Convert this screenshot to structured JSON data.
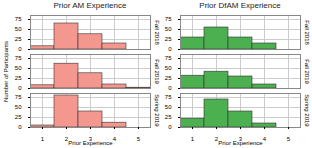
{
  "chart_data": [
    {
      "type": "histogram",
      "title": "Prior AM Experience",
      "color": "#f4978e",
      "xlabel": "Prior Experience",
      "ylabel": "Number of Participants",
      "bins": [
        0.5,
        1.5,
        2.5,
        3.5,
        4.5,
        5.5
      ],
      "xlim": [
        0.5,
        5.5
      ],
      "xticks": [
        1,
        2,
        3,
        4,
        5
      ],
      "ylim": [
        0,
        85
      ],
      "yticks": [
        0,
        25,
        50,
        75
      ],
      "grid": true,
      "series": [
        {
          "name": "Fall 2018",
          "values": [
            8,
            65,
            38,
            15,
            0
          ]
        },
        {
          "name": "Fall 2019",
          "values": [
            8,
            62,
            38,
            10,
            2
          ]
        },
        {
          "name": "Spring 2019",
          "values": [
            5,
            80,
            40,
            12,
            0
          ]
        }
      ]
    },
    {
      "type": "histogram",
      "title": "Prior DfAM Experience",
      "color": "#4caf50",
      "xlabel": "Prior Experience",
      "bins": [
        0.5,
        1.5,
        2.5,
        3.5,
        4.5,
        5.5
      ],
      "xlim": [
        0.5,
        5.5
      ],
      "xticks": [
        1,
        2,
        3,
        4,
        5
      ],
      "ylim": [
        0,
        85
      ],
      "yticks": [
        0,
        25,
        50,
        75
      ],
      "grid": true,
      "series": [
        {
          "name": "Fall 2018",
          "values": [
            30,
            55,
            30,
            15,
            0
          ]
        },
        {
          "name": "Fall 2019",
          "values": [
            32,
            42,
            30,
            10,
            0
          ]
        },
        {
          "name": "Spring 2019",
          "values": [
            22,
            70,
            40,
            10,
            0
          ]
        }
      ]
    }
  ]
}
